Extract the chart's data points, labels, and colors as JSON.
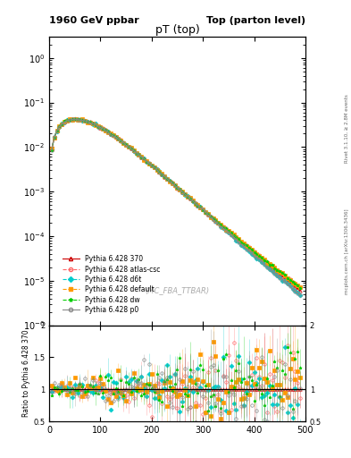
{
  "title_left": "1960 GeV ppbar",
  "title_right": "Top (parton level)",
  "plot_title": "pT (top)",
  "xlabel": "",
  "ylabel_main": "",
  "ylabel_ratio": "Ratio to Pythia 6.428 370",
  "right_label_top": "Rivet 3.1.10, ≥ 2.8M events",
  "right_label_bottom": "mcplots.cern.ch [arXiv:1306.3436]",
  "watermark": "(MC_FBA_TTBAR)",
  "xlim": [
    0,
    500
  ],
  "ylim_main": [
    1e-06,
    3
  ],
  "ylim_ratio": [
    0.5,
    2.0
  ],
  "series": [
    {
      "label": "Pythia 6.428 370",
      "color": "#cc0000",
      "marker": "^",
      "linestyle": "-",
      "filled": false,
      "lw": 1.2
    },
    {
      "label": "Pythia 6.428 atlas-csc",
      "color": "#ff6666",
      "marker": "o",
      "linestyle": "--",
      "filled": false,
      "lw": 1.0
    },
    {
      "label": "Pythia 6.428 d6t",
      "color": "#00cccc",
      "marker": "D",
      "linestyle": "--",
      "filled": true,
      "lw": 1.0
    },
    {
      "label": "Pythia 6.428 default",
      "color": "#ff9900",
      "marker": "s",
      "linestyle": "--",
      "filled": true,
      "lw": 1.0
    },
    {
      "label": "Pythia 6.428 dw",
      "color": "#00cc00",
      "marker": "*",
      "linestyle": "--",
      "filled": true,
      "lw": 1.0
    },
    {
      "label": "Pythia 6.428 p0",
      "color": "#888888",
      "marker": "o",
      "linestyle": "-",
      "filled": false,
      "lw": 1.0
    }
  ],
  "background_color": "#ffffff",
  "grid_color": "#cccccc"
}
